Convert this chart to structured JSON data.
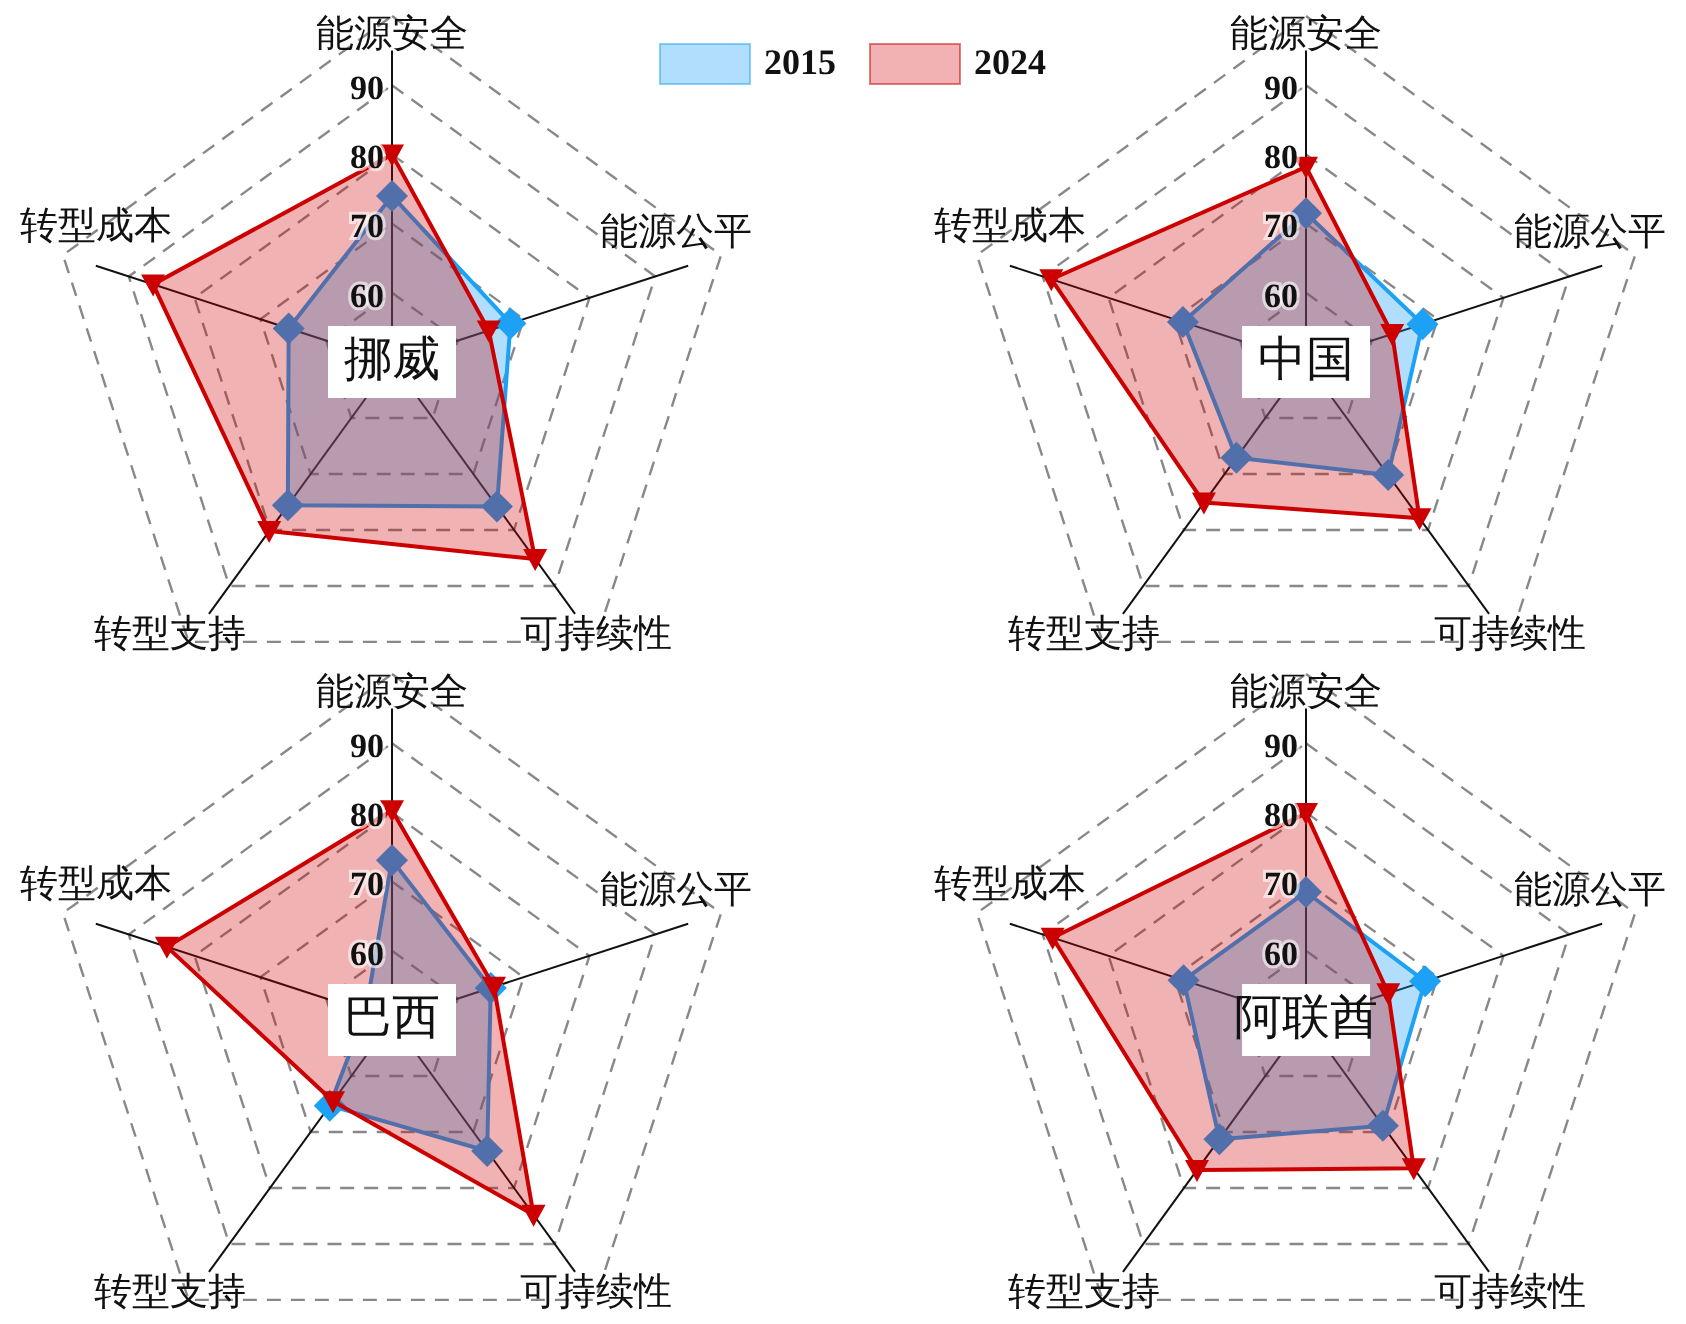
{
  "chart_data": [
    {
      "type": "radar",
      "title": "挪威",
      "categories": [
        "能源安全",
        "能源公平",
        "可持续性",
        "转型支持",
        "转型成本"
      ],
      "ylim": [
        50,
        100
      ],
      "yticks": [
        60,
        70,
        80,
        90
      ],
      "grid": true,
      "legend": "top",
      "series": [
        {
          "name": "2015",
          "color": "#1ca1f5",
          "marker": "diamond",
          "values": [
            74,
            68,
            75.8,
            75.6,
            65.7
          ]
        },
        {
          "name": "2024",
          "color": "#cc0000",
          "marker": "triangle",
          "values": [
            80,
            64.7,
            85.2,
            80.2,
            86.3
          ]
        }
      ]
    },
    {
      "type": "radar",
      "title": "中国",
      "categories": [
        "能源安全",
        "能源公平",
        "可持续性",
        "转型支持",
        "转型成本"
      ],
      "ylim": [
        50,
        100
      ],
      "yticks": [
        60,
        70,
        80,
        90
      ],
      "grid": true,
      "series": [
        {
          "color": "#1ca1f5",
          "marker": "diamond",
          "values": [
            71.5,
            67.7,
            70.2,
            67.1,
            68.7
          ]
        },
        {
          "color": "#cc0000",
          "marker": "triangle",
          "values": [
            78.2,
            63.1,
            77.9,
            75.1,
            88.7
          ]
        }
      ]
    },
    {
      "type": "radar",
      "title": "巴西",
      "categories": [
        "能源安全",
        "能源公平",
        "可持续性",
        "转型支持",
        "转型成本"
      ],
      "ylim": [
        50,
        100
      ],
      "yticks": [
        60,
        70,
        80,
        90
      ],
      "grid": true,
      "series": [
        {
          "color": "#1ca1f5",
          "marker": "diamond",
          "values": [
            73.1,
            65,
            73.4,
            65.3,
            54
          ]
        },
        {
          "color": "#cc0000",
          "marker": "triangle",
          "values": [
            80.3,
            65.5,
            84.8,
            64.5,
            84.2
          ]
        }
      ]
    },
    {
      "type": "radar",
      "title": "阿联酋",
      "categories": [
        "能源安全",
        "能源公平",
        "可持续性",
        "转型支持",
        "转型成本"
      ],
      "ylim": [
        50,
        100
      ],
      "yticks": [
        60,
        70,
        80,
        90
      ],
      "grid": true,
      "series": [
        {
          "color": "#1ca1f5",
          "marker": "diamond",
          "values": [
            68.5,
            68.1,
            68.9,
            71.3,
            68.6
          ]
        },
        {
          "color": "#cc0000",
          "marker": "triangle",
          "values": [
            79.9,
            62.5,
            76.5,
            76.8,
            88.5
          ]
        }
      ]
    }
  ]
}
